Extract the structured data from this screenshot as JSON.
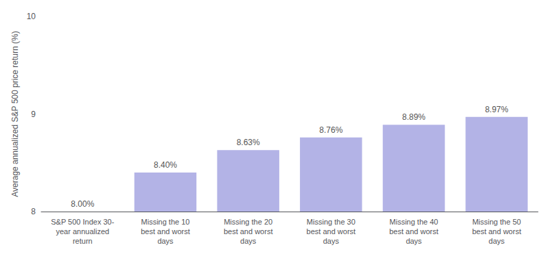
{
  "chart_data": {
    "type": "bar",
    "categories": [
      "S&P 500 Index 30-\nyear annualized\nreturn",
      "Missing the 10\nbest and worst\ndays",
      "Missing the 20\nbest and worst\ndays",
      "Missing the 30\nbest and worst\ndays",
      "Missing the 40\nbest and worst\ndays",
      "Missing the 50\nbest and worst\ndays"
    ],
    "values": [
      8.0,
      8.4,
      8.63,
      8.76,
      8.89,
      8.97
    ],
    "value_labels": [
      "8.00%",
      "8.40%",
      "8.63%",
      "8.76%",
      "8.89%",
      "8.97%"
    ],
    "data_labels": true,
    "color": "#b3b3e6",
    "ylabel": "Average annualized S&P 500 price return (%)",
    "ylim": [
      8.0,
      10.0
    ],
    "yticks": [
      8,
      9,
      10
    ],
    "grid": false
  }
}
